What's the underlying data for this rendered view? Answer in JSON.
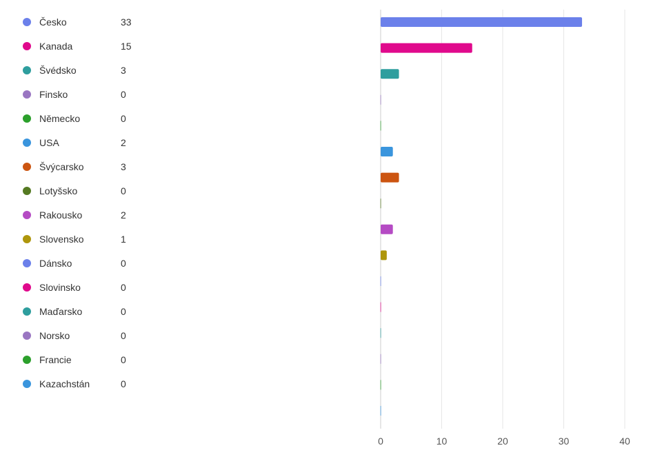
{
  "chart_data": {
    "type": "bar",
    "orientation": "horizontal",
    "categories": [
      "Česko",
      "Kanada",
      "Švédsko",
      "Finsko",
      "Německo",
      "USA",
      "Švýcarsko",
      "Lotyšsko",
      "Rakousko",
      "Slovensko",
      "Dánsko",
      "Slovinsko",
      "Maďarsko",
      "Norsko",
      "Francie",
      "Kazachstán"
    ],
    "values": [
      33,
      15,
      3,
      0,
      0,
      2,
      3,
      0,
      2,
      1,
      0,
      0,
      0,
      0,
      0,
      0
    ],
    "value_labels": [
      "33",
      "15",
      "3",
      "0",
      "0",
      "2",
      "3",
      "0",
      "2",
      "1",
      "0",
      "0",
      "0",
      "0",
      "0",
      "0"
    ],
    "colors": [
      "#6b80ea",
      "#e0098c",
      "#2e9e9e",
      "#9a76c2",
      "#2ca02c",
      "#3a95dd",
      "#cc5511",
      "#557a22",
      "#b54bc4",
      "#ae960c",
      "#6b80ea",
      "#e0098c",
      "#2e9e9e",
      "#9a76c2",
      "#2ca02c",
      "#3a95dd"
    ],
    "xlim": [
      0,
      40
    ],
    "xticks": [
      0,
      10,
      20,
      30,
      40
    ],
    "xtick_labels": [
      "0",
      "10",
      "20",
      "30",
      "40"
    ],
    "grid": true,
    "legend_position": "left",
    "title": "",
    "xlabel": "",
    "ylabel": ""
  }
}
